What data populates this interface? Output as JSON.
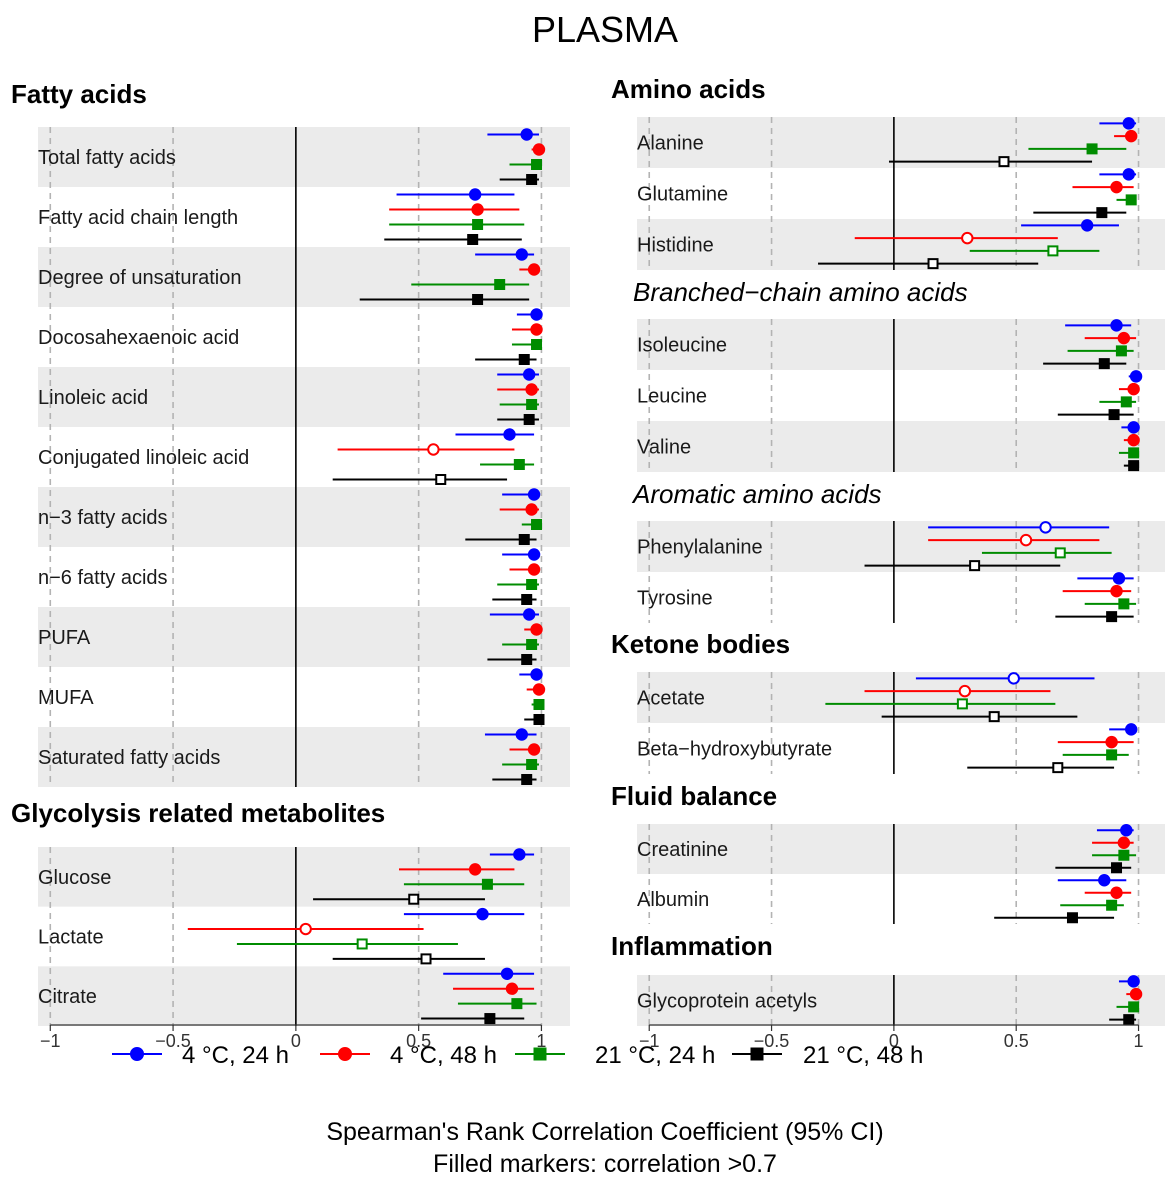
{
  "title": "PLASMA",
  "caption": {
    "line1": "Spearman's Rank Correlation Coefficient (95% CI)",
    "line2": "Filled markers: correlation >0.7"
  },
  "colors": {
    "series": [
      "#0000ff",
      "#ff0000",
      "#008c00",
      "#000000"
    ],
    "band": "#ebebeb",
    "gridline": "#b3b3b3",
    "zeroline": "#000000"
  },
  "markers": [
    "circle",
    "circle",
    "square",
    "square"
  ],
  "chart_data": {
    "type": "forest",
    "xlim": [
      -1.05,
      1.1
    ],
    "ticks": [
      -1,
      -0.5,
      0,
      0.5,
      1
    ],
    "tick_labels": [
      "−1",
      "−0.5",
      "0",
      "0.5",
      "1"
    ],
    "grid": true,
    "fill_threshold": 0.7,
    "series": [
      {
        "name": "4 °C, 24 h"
      },
      {
        "name": "4 °C, 48 h"
      },
      {
        "name": "21 °C, 24 h"
      },
      {
        "name": "21 °C, 48 h"
      }
    ],
    "panels": [
      {
        "id": "left",
        "groups": [
          {
            "title": "Fatty acids",
            "rows": [
              {
                "label": "Total fatty acids",
                "points": [
                  [
                    0.94,
                    0.78,
                    0.99
                  ],
                  [
                    0.99,
                    0.96,
                    1.0
                  ],
                  [
                    0.98,
                    0.87,
                    0.99
                  ],
                  [
                    0.96,
                    0.83,
                    0.99
                  ]
                ]
              },
              {
                "label": "Fatty acid chain length",
                "points": [
                  [
                    0.73,
                    0.41,
                    0.89
                  ],
                  [
                    0.74,
                    0.38,
                    0.91
                  ],
                  [
                    0.74,
                    0.38,
                    0.93
                  ],
                  [
                    0.72,
                    0.36,
                    0.92
                  ]
                ]
              },
              {
                "label": "Degree of unsaturation",
                "points": [
                  [
                    0.92,
                    0.73,
                    0.97
                  ],
                  [
                    0.97,
                    0.91,
                    0.99
                  ],
                  [
                    0.83,
                    0.47,
                    0.95
                  ],
                  [
                    0.74,
                    0.26,
                    0.95
                  ]
                ]
              },
              {
                "label": "Docosahexaenoic acid",
                "points": [
                  [
                    0.98,
                    0.9,
                    0.99
                  ],
                  [
                    0.98,
                    0.88,
                    0.99
                  ],
                  [
                    0.98,
                    0.88,
                    0.99
                  ],
                  [
                    0.93,
                    0.73,
                    0.98
                  ]
                ]
              },
              {
                "label": "Linoleic acid",
                "points": [
                  [
                    0.95,
                    0.82,
                    0.99
                  ],
                  [
                    0.96,
                    0.82,
                    0.99
                  ],
                  [
                    0.96,
                    0.83,
                    0.99
                  ],
                  [
                    0.95,
                    0.82,
                    0.99
                  ]
                ]
              },
              {
                "label": "Conjugated linoleic acid",
                "points": [
                  [
                    0.87,
                    0.65,
                    0.97
                  ],
                  [
                    0.56,
                    0.17,
                    0.89
                  ],
                  [
                    0.91,
                    0.75,
                    0.97
                  ],
                  [
                    0.59,
                    0.15,
                    0.86
                  ]
                ]
              },
              {
                "label": "n−3 fatty acids",
                "points": [
                  [
                    0.97,
                    0.84,
                    0.99
                  ],
                  [
                    0.96,
                    0.83,
                    0.99
                  ],
                  [
                    0.98,
                    0.92,
                    0.99
                  ],
                  [
                    0.93,
                    0.69,
                    0.98
                  ]
                ]
              },
              {
                "label": "n−6 fatty acids",
                "points": [
                  [
                    0.97,
                    0.84,
                    0.99
                  ],
                  [
                    0.97,
                    0.87,
                    0.99
                  ],
                  [
                    0.96,
                    0.82,
                    0.99
                  ],
                  [
                    0.94,
                    0.8,
                    0.98
                  ]
                ]
              },
              {
                "label": "PUFA",
                "points": [
                  [
                    0.95,
                    0.79,
                    0.99
                  ],
                  [
                    0.98,
                    0.93,
                    0.99
                  ],
                  [
                    0.96,
                    0.84,
                    0.99
                  ],
                  [
                    0.94,
                    0.78,
                    0.98
                  ]
                ]
              },
              {
                "label": "MUFA",
                "points": [
                  [
                    0.98,
                    0.91,
                    0.99
                  ],
                  [
                    0.99,
                    0.94,
                    1.0
                  ],
                  [
                    0.99,
                    0.96,
                    1.0
                  ],
                  [
                    0.99,
                    0.93,
                    1.0
                  ]
                ]
              },
              {
                "label": "Saturated fatty acids",
                "points": [
                  [
                    0.92,
                    0.77,
                    0.98
                  ],
                  [
                    0.97,
                    0.87,
                    0.99
                  ],
                  [
                    0.96,
                    0.84,
                    0.99
                  ],
                  [
                    0.94,
                    0.8,
                    0.98
                  ]
                ]
              }
            ]
          },
          {
            "title": "Glycolysis related metabolites",
            "rows": [
              {
                "label": "Glucose",
                "points": [
                  [
                    0.91,
                    0.79,
                    0.97
                  ],
                  [
                    0.73,
                    0.42,
                    0.89
                  ],
                  [
                    0.78,
                    0.44,
                    0.93
                  ],
                  [
                    0.48,
                    0.07,
                    0.77
                  ]
                ]
              },
              {
                "label": "Lactate",
                "points": [
                  [
                    0.76,
                    0.44,
                    0.93
                  ],
                  [
                    0.04,
                    -0.44,
                    0.52
                  ],
                  [
                    0.27,
                    -0.24,
                    0.66
                  ],
                  [
                    0.53,
                    0.15,
                    0.77
                  ]
                ]
              },
              {
                "label": "Citrate",
                "points": [
                  [
                    0.86,
                    0.6,
                    0.97
                  ],
                  [
                    0.88,
                    0.64,
                    0.97
                  ],
                  [
                    0.9,
                    0.66,
                    0.98
                  ],
                  [
                    0.79,
                    0.51,
                    0.93
                  ]
                ]
              }
            ]
          }
        ]
      },
      {
        "id": "right",
        "groups": [
          {
            "title": "Amino acids",
            "rows": [
              {
                "label": "Alanine",
                "points": [
                  [
                    0.96,
                    0.84,
                    0.99
                  ],
                  [
                    0.97,
                    0.9,
                    0.99
                  ],
                  [
                    0.81,
                    0.55,
                    0.95
                  ],
                  [
                    0.45,
                    -0.02,
                    0.81
                  ]
                ]
              },
              {
                "label": "Glutamine",
                "points": [
                  [
                    0.96,
                    0.84,
                    0.99
                  ],
                  [
                    0.91,
                    0.73,
                    0.98
                  ],
                  [
                    0.97,
                    0.91,
                    0.99
                  ],
                  [
                    0.85,
                    0.57,
                    0.95
                  ]
                ]
              },
              {
                "label": "Histidine",
                "points": [
                  [
                    0.79,
                    0.52,
                    0.92
                  ],
                  [
                    0.3,
                    -0.16,
                    0.67
                  ],
                  [
                    0.65,
                    0.31,
                    0.84
                  ],
                  [
                    0.16,
                    -0.31,
                    0.59
                  ]
                ]
              }
            ]
          },
          {
            "title": "Branched−chain amino acids",
            "italic": true,
            "rows": [
              {
                "label": "Isoleucine",
                "points": [
                  [
                    0.91,
                    0.7,
                    0.97
                  ],
                  [
                    0.94,
                    0.78,
                    0.99
                  ],
                  [
                    0.93,
                    0.71,
                    0.98
                  ],
                  [
                    0.86,
                    0.61,
                    0.95
                  ]
                ]
              },
              {
                "label": "Leucine",
                "points": [
                  [
                    0.99,
                    0.96,
                    1.0
                  ],
                  [
                    0.98,
                    0.92,
                    0.99
                  ],
                  [
                    0.95,
                    0.84,
                    0.99
                  ],
                  [
                    0.9,
                    0.67,
                    0.98
                  ]
                ]
              },
              {
                "label": "Valine",
                "points": [
                  [
                    0.98,
                    0.93,
                    0.99
                  ],
                  [
                    0.98,
                    0.94,
                    1.0
                  ],
                  [
                    0.98,
                    0.92,
                    0.99
                  ],
                  [
                    0.98,
                    0.94,
                    0.99
                  ]
                ]
              }
            ]
          },
          {
            "title": "Aromatic amino acids",
            "italic": true,
            "rows": [
              {
                "label": "Phenylalanine",
                "points": [
                  [
                    0.62,
                    0.14,
                    0.88
                  ],
                  [
                    0.54,
                    0.14,
                    0.84
                  ],
                  [
                    0.68,
                    0.36,
                    0.89
                  ],
                  [
                    0.33,
                    -0.12,
                    0.68
                  ]
                ]
              },
              {
                "label": "Tyrosine",
                "points": [
                  [
                    0.92,
                    0.75,
                    0.98
                  ],
                  [
                    0.91,
                    0.69,
                    0.97
                  ],
                  [
                    0.94,
                    0.78,
                    0.99
                  ],
                  [
                    0.89,
                    0.66,
                    0.98
                  ]
                ]
              }
            ]
          },
          {
            "title": "Ketone bodies",
            "rows": [
              {
                "label": "Acetate",
                "points": [
                  [
                    0.49,
                    0.09,
                    0.82
                  ],
                  [
                    0.29,
                    -0.12,
                    0.64
                  ],
                  [
                    0.28,
                    -0.28,
                    0.66
                  ],
                  [
                    0.41,
                    -0.05,
                    0.75
                  ]
                ]
              },
              {
                "label": "Beta−hydroxybutyrate",
                "points": [
                  [
                    0.97,
                    0.88,
                    0.99
                  ],
                  [
                    0.89,
                    0.67,
                    0.98
                  ],
                  [
                    0.89,
                    0.69,
                    0.96
                  ],
                  [
                    0.67,
                    0.3,
                    0.9
                  ]
                ]
              }
            ]
          },
          {
            "title": "Fluid balance",
            "rows": [
              {
                "label": "Creatinine",
                "points": [
                  [
                    0.95,
                    0.83,
                    0.98
                  ],
                  [
                    0.94,
                    0.81,
                    0.98
                  ],
                  [
                    0.94,
                    0.81,
                    0.99
                  ],
                  [
                    0.91,
                    0.66,
                    0.97
                  ]
                ]
              },
              {
                "label": "Albumin",
                "points": [
                  [
                    0.86,
                    0.67,
                    0.95
                  ],
                  [
                    0.91,
                    0.78,
                    0.97
                  ],
                  [
                    0.89,
                    0.68,
                    0.94
                  ],
                  [
                    0.73,
                    0.41,
                    0.9
                  ]
                ]
              }
            ]
          },
          {
            "title": "Inflammation",
            "rows": [
              {
                "label": "Glycoprotein acetyls",
                "points": [
                  [
                    0.98,
                    0.92,
                    0.99
                  ],
                  [
                    0.99,
                    0.95,
                    1.0
                  ],
                  [
                    0.98,
                    0.91,
                    0.99
                  ],
                  [
                    0.96,
                    0.88,
                    0.99
                  ]
                ]
              }
            ]
          }
        ]
      }
    ]
  }
}
